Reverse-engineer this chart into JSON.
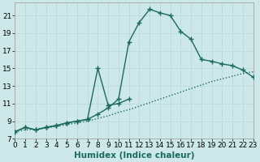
{
  "xlabel": "Humidex (Indice chaleur)",
  "bg_color": "#cce8e8",
  "line_color": "#1a6b5a",
  "grid_color": "#b8d8d8",
  "xlim": [
    0,
    23
  ],
  "ylim": [
    7,
    22.5
  ],
  "xticks": [
    0,
    1,
    2,
    3,
    4,
    5,
    6,
    7,
    8,
    9,
    10,
    11,
    12,
    13,
    14,
    15,
    16,
    17,
    18,
    19,
    20,
    21,
    22,
    23
  ],
  "yticks": [
    7,
    9,
    11,
    13,
    15,
    17,
    19,
    21
  ],
  "tick_fontsize": 6.5,
  "label_fontsize": 7.5,
  "linewidth": 1.0,
  "markersize": 4,
  "seriesA_x": [
    0,
    1,
    2,
    3,
    4,
    5,
    6,
    7,
    8,
    9,
    10,
    11,
    12,
    13,
    14,
    15,
    16,
    17,
    18,
    19,
    20,
    21,
    22,
    23
  ],
  "seriesA_y": [
    7.8,
    8.0,
    8.1,
    8.2,
    8.4,
    8.6,
    8.8,
    9.0,
    9.3,
    9.6,
    10.0,
    10.3,
    10.7,
    11.1,
    11.5,
    11.9,
    12.3,
    12.7,
    13.1,
    13.5,
    13.8,
    14.1,
    14.4,
    14.6
  ],
  "seriesB_x": [
    0,
    1,
    2,
    3,
    4,
    5,
    6,
    7,
    8,
    9,
    10,
    11,
    12,
    13,
    14,
    15,
    16,
    17,
    18,
    19,
    20,
    21,
    22,
    23
  ],
  "seriesB_y": [
    7.8,
    8.3,
    8.0,
    8.3,
    8.5,
    8.8,
    9.0,
    9.2,
    9.8,
    10.5,
    11.5,
    18.0,
    20.2,
    21.7,
    21.3,
    21.0,
    19.2,
    18.3,
    16.0,
    15.8,
    15.5,
    15.3,
    14.8,
    14.0
  ],
  "seriesC_x": [
    0,
    1,
    2,
    3,
    4,
    5,
    6,
    7,
    8,
    9,
    10,
    11
  ],
  "seriesC_y": [
    7.8,
    8.3,
    8.0,
    8.3,
    8.5,
    8.8,
    9.0,
    9.2,
    15.0,
    10.8,
    11.0,
    11.5
  ]
}
